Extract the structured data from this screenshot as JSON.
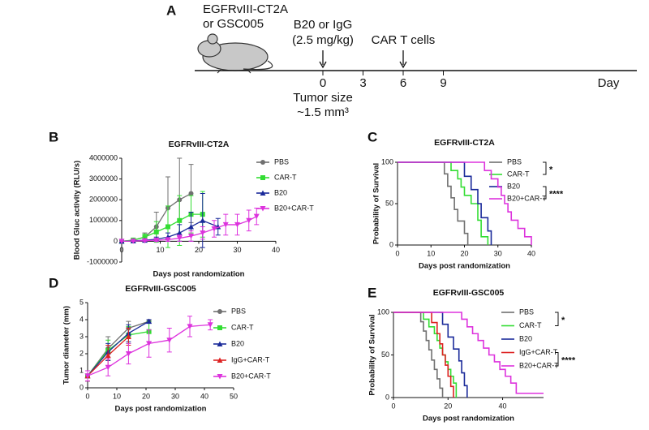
{
  "schematic": {
    "panel": "A",
    "model": [
      "EGFRvIII-CT2A",
      "or GSC005"
    ],
    "treatment": [
      "B20 or IgG",
      "(2.5 mg/kg)"
    ],
    "cells": "CAR T cells",
    "days": [
      0,
      3,
      6,
      9
    ],
    "unit": "Day",
    "tumor": [
      "Tumor size",
      "~1.5 mm³"
    ]
  },
  "chart_data": [
    {
      "type": "line",
      "panel": "B",
      "title": "EGFRvIII-CT2A",
      "x_label": "Days post randomization",
      "y_label": "Blood Gluc activity (RLU/s)",
      "xlim": [
        0,
        40
      ],
      "xticks": [
        0,
        10,
        20,
        30,
        40
      ],
      "ylim": [
        -1000000,
        4000000
      ],
      "yticks": [
        -1000000,
        0,
        1000000,
        2000000,
        3000000,
        4000000
      ],
      "series": [
        {
          "name": "PBS",
          "color": "#707070",
          "marker": "circle",
          "x": [
            0,
            3,
            6,
            9,
            12,
            15,
            18
          ],
          "values": [
            0,
            50000,
            200000,
            700000,
            1600000,
            2000000,
            2300000
          ],
          "errors": [
            0,
            50000,
            200000,
            700000,
            1500000,
            2000000,
            1400000
          ]
        },
        {
          "name": "CAR-T",
          "color": "#33dd33",
          "marker": "square",
          "x": [
            0,
            3,
            6,
            9,
            12,
            15,
            18,
            21
          ],
          "values": [
            0,
            60000,
            200000,
            450000,
            700000,
            1000000,
            1300000,
            1300000
          ],
          "errors": [
            0,
            50000,
            150000,
            500000,
            1000000,
            1200000,
            900000,
            1100000
          ]
        },
        {
          "name": "B20",
          "color": "#1a2a9a",
          "marker": "triangle",
          "x": [
            0,
            3,
            6,
            9,
            12,
            15,
            18,
            21,
            25
          ],
          "values": [
            0,
            20000,
            50000,
            100000,
            200000,
            400000,
            700000,
            1000000,
            700000
          ],
          "errors": [
            0,
            20000,
            50000,
            100000,
            200000,
            400000,
            700000,
            1300000,
            400000
          ]
        },
        {
          "name": "B20+CAR-T",
          "color": "#dd33dd",
          "marker": "triangle-down",
          "x": [
            0,
            3,
            6,
            9,
            12,
            15,
            18,
            21,
            24,
            27,
            30,
            33,
            35
          ],
          "values": [
            0,
            10000,
            30000,
            50000,
            80000,
            150000,
            250000,
            400000,
            600000,
            800000,
            800000,
            1000000,
            1200000
          ],
          "errors": [
            0,
            10000,
            30000,
            50000,
            80000,
            150000,
            250000,
            300000,
            400000,
            500000,
            500000,
            500000,
            400000
          ]
        }
      ]
    },
    {
      "type": "survival",
      "panel": "C",
      "title": "EGFRvIII-CT2A",
      "x_label": "Days post randomization",
      "y_label": "Probability of Survival",
      "xlim": [
        0,
        40
      ],
      "xticks": [
        0,
        10,
        20,
        30,
        40
      ],
      "ylim": [
        0,
        100
      ],
      "yticks": [
        0,
        50,
        100
      ],
      "annotations": [
        "*",
        "****"
      ],
      "series": [
        {
          "name": "PBS",
          "color": "#707070",
          "x": [
            0,
            14,
            15,
            16,
            17,
            18,
            20,
            21
          ],
          "values": [
            100,
            86,
            71,
            57,
            43,
            29,
            14,
            0
          ]
        },
        {
          "name": "CAR-T",
          "color": "#33dd33",
          "x": [
            0,
            16,
            18,
            19,
            20,
            22,
            24,
            25,
            27
          ],
          "values": [
            100,
            90,
            80,
            70,
            60,
            50,
            30,
            10,
            0
          ]
        },
        {
          "name": "B20",
          "color": "#1a2a9a",
          "x": [
            0,
            20,
            22,
            24,
            25,
            27,
            28
          ],
          "values": [
            100,
            83,
            67,
            50,
            33,
            17,
            0
          ]
        },
        {
          "name": "B20+CAR-T",
          "color": "#dd33dd",
          "x": [
            0,
            26,
            28,
            30,
            31,
            32,
            33,
            34,
            36,
            38,
            40
          ],
          "values": [
            100,
            90,
            80,
            70,
            60,
            50,
            40,
            30,
            20,
            10,
            0
          ]
        }
      ]
    },
    {
      "type": "line",
      "panel": "D",
      "title": "EGFRvIII-GSC005",
      "x_label": "Days post randomization",
      "y_label": "Tumor diameter (mm)",
      "xlim": [
        0,
        50
      ],
      "xticks": [
        0,
        10,
        20,
        30,
        40,
        50
      ],
      "ylim": [
        0,
        5
      ],
      "yticks": [
        0,
        1,
        2,
        3,
        4,
        5
      ],
      "series": [
        {
          "name": "PBS",
          "color": "#707070",
          "marker": "circle",
          "x": [
            0,
            7,
            14,
            21
          ],
          "values": [
            0.7,
            2.3,
            3.5,
            3.9
          ],
          "errors": [
            0.3,
            0.7,
            0.4,
            0.1
          ]
        },
        {
          "name": "CAR-T",
          "color": "#33dd33",
          "marker": "square",
          "x": [
            0,
            7,
            14,
            21
          ],
          "values": [
            0.7,
            2.2,
            3.1,
            3.3
          ],
          "errors": [
            0.3,
            0.6,
            0.5,
            0.6
          ]
        },
        {
          "name": "B20",
          "color": "#1a2a9a",
          "marker": "triangle",
          "x": [
            0,
            7,
            14,
            21
          ],
          "values": [
            0.7,
            2.1,
            3.2,
            3.9
          ],
          "errors": [
            0.3,
            0.5,
            0.5,
            0.1
          ]
        },
        {
          "name": "IgG+CAR-T",
          "color": "#dd2222",
          "marker": "triangle",
          "x": [
            0,
            7,
            14
          ],
          "values": [
            0.7,
            1.9,
            3.0
          ],
          "errors": [
            0.3,
            0.6,
            0.5
          ]
        },
        {
          "name": "B20+CAR-T",
          "color": "#dd33dd",
          "marker": "triangle-down",
          "x": [
            0,
            7,
            14,
            21,
            28,
            35,
            42
          ],
          "values": [
            0.7,
            1.2,
            2.0,
            2.6,
            2.8,
            3.6,
            3.7
          ],
          "errors": [
            0.3,
            0.5,
            0.6,
            0.8,
            0.7,
            0.6,
            0.3
          ]
        }
      ]
    },
    {
      "type": "survival",
      "panel": "E",
      "title": "EGFRvIII-GSC005",
      "x_label": "Days post randomization",
      "y_label": "Probability of Survival",
      "xlim": [
        0,
        55
      ],
      "xticks": [
        0,
        20,
        40
      ],
      "ylim": [
        0,
        100
      ],
      "yticks": [
        0,
        50,
        100
      ],
      "annotations": [
        "*",
        "****"
      ],
      "series": [
        {
          "name": "PBS",
          "color": "#707070",
          "x": [
            0,
            10,
            11,
            12,
            13,
            14,
            15,
            16,
            17,
            18
          ],
          "values": [
            100,
            89,
            78,
            67,
            56,
            44,
            33,
            22,
            11,
            0
          ]
        },
        {
          "name": "CAR-T",
          "color": "#33dd33",
          "x": [
            0,
            11,
            13,
            15,
            16,
            17,
            18,
            19,
            20,
            21,
            22,
            23
          ],
          "values": [
            100,
            92,
            83,
            75,
            67,
            58,
            50,
            42,
            33,
            25,
            17,
            0
          ]
        },
        {
          "name": "B20",
          "color": "#1a2a9a",
          "x": [
            0,
            18,
            20,
            22,
            24,
            25,
            26,
            27
          ],
          "values": [
            100,
            86,
            71,
            57,
            43,
            29,
            14,
            0
          ]
        },
        {
          "name": "IgG+CAR-T",
          "color": "#dd2222",
          "x": [
            0,
            14,
            16,
            17,
            18,
            19,
            20,
            21,
            22
          ],
          "values": [
            100,
            88,
            75,
            63,
            50,
            38,
            25,
            13,
            0
          ]
        },
        {
          "name": "B20+CAR-T",
          "color": "#dd33dd",
          "x": [
            0,
            25,
            27,
            29,
            31,
            33,
            35,
            37,
            39,
            41,
            43,
            45,
            55
          ],
          "values": [
            100,
            92,
            83,
            75,
            67,
            58,
            50,
            42,
            33,
            25,
            17,
            5,
            5
          ]
        }
      ]
    }
  ]
}
